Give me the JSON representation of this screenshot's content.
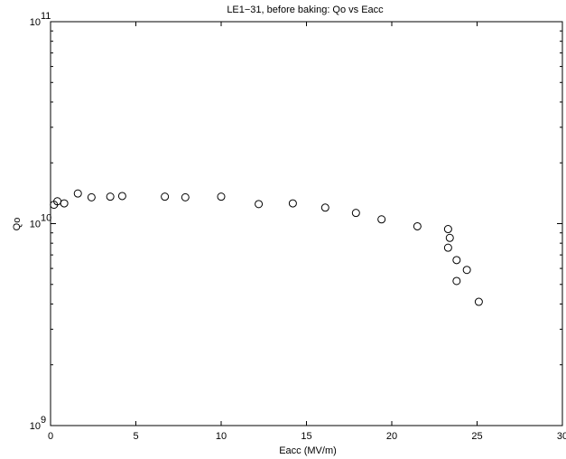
{
  "chart_data": {
    "type": "scatter",
    "title": "LE1−31, before baking: Qo vs Eacc",
    "xlabel": "Eacc (MV/m)",
    "ylabel": "Qo",
    "xlim": [
      0,
      30
    ],
    "ylim": [
      1000000000.0,
      100000000000.0
    ],
    "yscale": "log",
    "grid": false,
    "x_ticks": [
      0,
      5,
      10,
      15,
      20,
      25,
      30
    ],
    "x_tick_labels": [
      "0",
      "5",
      "10",
      "15",
      "20",
      "25",
      "30"
    ],
    "y_ticks": [
      1000000000.0,
      10000000000.0,
      100000000000.0
    ],
    "y_tick_labels": [
      {
        "base": "10",
        "exp": "9"
      },
      {
        "base": "10",
        "exp": "10"
      },
      {
        "base": "10",
        "exp": "11"
      }
    ],
    "marker": "open-circle",
    "points": [
      {
        "x": 0.2,
        "y": 12400000000.0
      },
      {
        "x": 0.4,
        "y": 12900000000.0
      },
      {
        "x": 0.8,
        "y": 12600000000.0
      },
      {
        "x": 1.6,
        "y": 14100000000.0
      },
      {
        "x": 2.4,
        "y": 13500000000.0
      },
      {
        "x": 3.5,
        "y": 13600000000.0
      },
      {
        "x": 4.2,
        "y": 13700000000.0
      },
      {
        "x": 6.7,
        "y": 13600000000.0
      },
      {
        "x": 7.9,
        "y": 13500000000.0
      },
      {
        "x": 10.0,
        "y": 13600000000.0
      },
      {
        "x": 12.2,
        "y": 12500000000.0
      },
      {
        "x": 14.2,
        "y": 12600000000.0
      },
      {
        "x": 16.1,
        "y": 12000000000.0
      },
      {
        "x": 17.9,
        "y": 11300000000.0
      },
      {
        "x": 19.4,
        "y": 10500000000.0
      },
      {
        "x": 21.5,
        "y": 9700000000.0
      },
      {
        "x": 23.3,
        "y": 9400000000.0
      },
      {
        "x": 23.4,
        "y": 8500000000.0
      },
      {
        "x": 23.3,
        "y": 7600000000.0
      },
      {
        "x": 23.8,
        "y": 6600000000.0
      },
      {
        "x": 24.4,
        "y": 5900000000.0
      },
      {
        "x": 23.8,
        "y": 5200000000.0
      },
      {
        "x": 25.1,
        "y": 4100000000.0
      }
    ]
  }
}
